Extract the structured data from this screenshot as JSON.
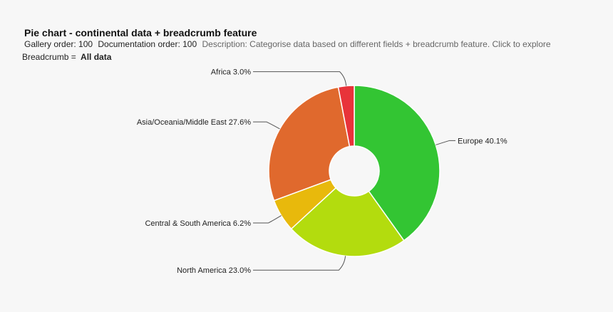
{
  "chart_data": {
    "type": "pie",
    "title": "Pie chart - continental data + breadcrumb feature",
    "gallery_order": "Gallery order: 100",
    "documentation_order": "Documentation order: 100",
    "description": "Description: Categorise data based on different fields + breadcrumb feature. Click to explore",
    "breadcrumb_label": "Breadcrumb =",
    "breadcrumb": "All data",
    "categories": [
      "Europe",
      "North America",
      "Central & South America",
      "Asia/Oceania/Middle East",
      "Africa"
    ],
    "values": [
      40.1,
      23.0,
      6.2,
      27.6,
      3.0
    ],
    "value_labels": [
      "40.1%",
      "23.0%",
      "6.2%",
      "27.6%",
      "3.0%"
    ],
    "colors": [
      "#33c533",
      "#b3dc0e",
      "#e8b90c",
      "#e0692d",
      "#e8333a"
    ]
  }
}
